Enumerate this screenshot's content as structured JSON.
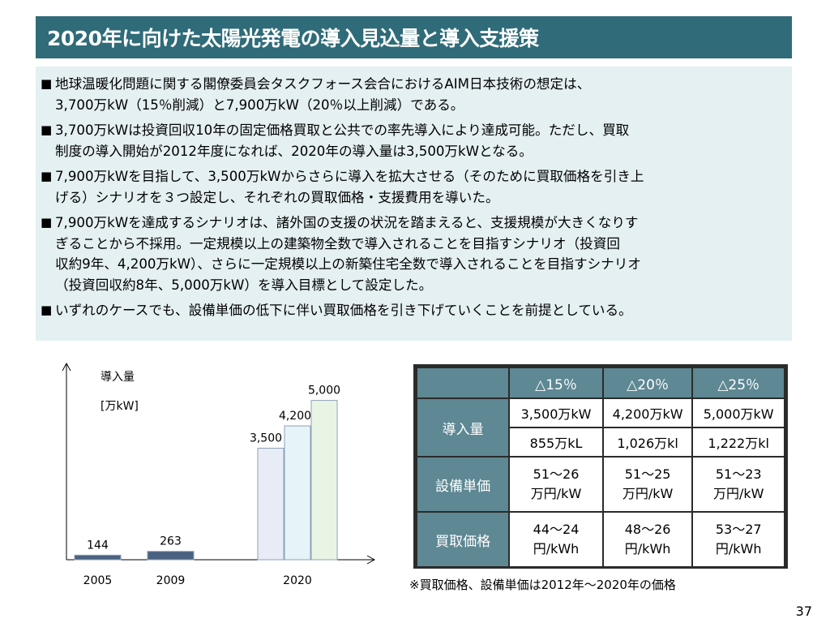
{
  "title": "2020年に向けた太陽光発電の導入見込量と導入支援策",
  "bullets": [
    "地球温暖化問題に関する閣僚委員会タスクフォース会合におけるAIM日本技術の想定は、\n3,700万kW（15％削減）と7,900万kW（20％以上削減）である。",
    "3,700万kWは投資回収10年の固定価格買取と公共での率先導入により達成可能。ただし、買取\n制度の導入開始が2012年度になれば、2020年の導入量は3,500万kWとなる。",
    "7,900万kWを目指して、3,500万kWからさらに導入を拡大させる（そのために買取価格を引き上\nげる）シナリオを３つ設定し、それぞれの買取価格・支援費用を導いた。",
    "7,900万kWを達成するシナリオは、諸外国の支援の状況を踏まえると、支援規模が大きくなりす\nぎることから不採用。一定規模以上の建築物全数で導入されることを目指すシナリオ（投資回\n収約9年、4,200万kW）、さらに一定規模以上の新築住宅全数で導入されることを目指すシナリオ\n（投資回収約8年、5,000万kW）を導入目標として設定した。",
    "いずれのケースでも、設備単価の低下に伴い買取価格を引き下げていくことを前提としている。"
  ],
  "bullet_mark": "■",
  "chart_data": {
    "type": "bar",
    "ylabel": "導入量",
    "unit": "[万kW]",
    "groups": [
      {
        "x": "2005",
        "bars": [
          {
            "value": 144,
            "label": "144",
            "color": "#4a6182"
          }
        ]
      },
      {
        "x": "2009",
        "bars": [
          {
            "value": 263,
            "label": "263",
            "color": "#4a6182"
          }
        ]
      },
      {
        "x": "2020",
        "bars": [
          {
            "value": 3500,
            "label": "3,500",
            "color": "#e8ecf6"
          },
          {
            "value": 4200,
            "label": "4,200",
            "color": "#e6f3f8"
          },
          {
            "value": 5000,
            "label": "5,000",
            "color": "#e9f5e4"
          }
        ]
      }
    ],
    "ylim": [
      0,
      5600
    ]
  },
  "table": {
    "columns": [
      "△15％",
      "△20％",
      "△25％"
    ],
    "rows": [
      {
        "label": "導入量",
        "values": [
          [
            "3,500万kW",
            "4,200万kW",
            "5,000万kW"
          ],
          [
            "855万kL",
            "1,026万kl",
            "1,222万kl"
          ]
        ]
      },
      {
        "label": "設備単価",
        "values": [
          [
            "51～26\n万円/kW",
            "51～25\n万円/kW",
            "51～23\n万円/kW"
          ]
        ]
      },
      {
        "label": "買取価格",
        "values": [
          [
            "44～24\n円/kWh",
            "48～26\n円/kWh",
            "53～27\n円/kWh"
          ]
        ]
      }
    ]
  },
  "footnote": "※買取価格、設備単価は2012年～2020年の価格",
  "page_number": "37"
}
